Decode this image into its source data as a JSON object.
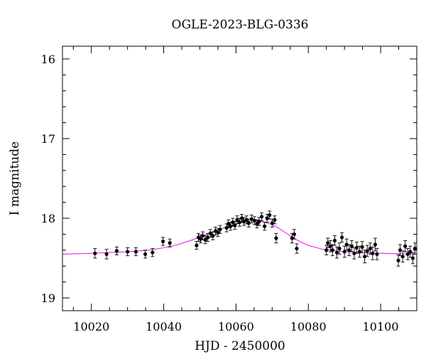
{
  "chart_data": {
    "type": "scatter",
    "title": "OGLE-2023-BLG-0336",
    "xlabel": "HJD - 2450000",
    "ylabel": "I magnitude",
    "xlim": [
      10012,
      10110
    ],
    "ylim": [
      19.16,
      15.84
    ],
    "y_inverted": true,
    "grid": false,
    "x_ticks": [
      10020,
      10040,
      10060,
      10080,
      10100
    ],
    "y_ticks": [
      16,
      17,
      18,
      19
    ],
    "x_tick_labels": [
      "10020",
      "10040",
      "10060",
      "10080",
      "10100"
    ],
    "y_tick_labels": [
      "16",
      "17",
      "18",
      "19"
    ],
    "colors": {
      "data": "#000000",
      "model": "#ee22ee"
    },
    "model": {
      "name": "",
      "x": [
        10012,
        10020,
        10030,
        10036,
        10040,
        10044,
        10048,
        10052,
        10056,
        10060,
        10063,
        10066,
        10068,
        10070,
        10072,
        10074,
        10076,
        10078,
        10080,
        10084,
        10088,
        10094,
        10100,
        10110
      ],
      "y": [
        18.45,
        18.44,
        18.42,
        18.4,
        18.37,
        18.33,
        18.27,
        18.2,
        18.13,
        18.07,
        18.04,
        18.03,
        18.05,
        18.08,
        18.13,
        18.19,
        18.25,
        18.3,
        18.34,
        18.39,
        18.41,
        18.43,
        18.44,
        18.45
      ]
    },
    "series": [
      {
        "x": [
          10021.0,
          10024.2,
          10027.0,
          10030.0,
          10032.3,
          10034.9,
          10036.9,
          10039.8,
          10041.7,
          10049.1,
          10049.6,
          10050.2,
          10050.8,
          10051.5,
          10052.2,
          10052.9,
          10053.6,
          10054.3,
          10055.0,
          10055.6,
          10057.4,
          10057.9,
          10058.5,
          10059.1,
          10059.7,
          10060.3,
          10061.0,
          10061.6,
          10062.2,
          10062.9,
          10063.5,
          10064.3,
          10065.1,
          10065.8,
          10066.4,
          10067.1,
          10067.9,
          10068.6,
          10069.3,
          10070.0,
          10070.7,
          10071.1,
          10075.5,
          10076.1,
          10076.8,
          10085.0,
          10085.4,
          10086.1,
          10086.7,
          10087.3,
          10087.9,
          10088.6,
          10089.3,
          10090.0,
          10090.6,
          10091.3,
          10092.0,
          10092.7,
          10093.4,
          10094.2,
          10094.9,
          10095.6,
          10096.3,
          10097.1,
          10097.8,
          10098.5,
          10099.0,
          10104.9,
          10105.4,
          10106.1,
          10106.8,
          10107.5,
          10108.2,
          10108.9,
          10109.5
        ],
        "y": [
          18.44,
          18.45,
          18.41,
          18.42,
          18.42,
          18.45,
          18.43,
          18.29,
          18.31,
          18.34,
          18.24,
          18.26,
          18.22,
          18.27,
          18.24,
          18.19,
          18.22,
          18.16,
          18.18,
          18.14,
          18.12,
          18.07,
          18.1,
          18.05,
          18.09,
          18.02,
          18.05,
          18.0,
          18.04,
          18.02,
          18.06,
          18.01,
          18.03,
          18.07,
          18.04,
          17.98,
          18.1,
          18.0,
          17.96,
          18.06,
          18.02,
          18.25,
          18.25,
          18.2,
          18.38,
          18.4,
          18.31,
          18.35,
          18.4,
          18.28,
          18.43,
          18.38,
          18.24,
          18.42,
          18.33,
          18.4,
          18.35,
          18.44,
          18.37,
          18.42,
          18.36,
          18.48,
          18.41,
          18.38,
          18.44,
          18.33,
          18.45,
          18.53,
          18.4,
          18.48,
          18.35,
          18.45,
          18.42,
          18.5,
          18.38
        ],
        "yerr": [
          0.06,
          0.06,
          0.05,
          0.05,
          0.05,
          0.05,
          0.05,
          0.05,
          0.05,
          0.05,
          0.05,
          0.05,
          0.05,
          0.05,
          0.05,
          0.05,
          0.05,
          0.05,
          0.05,
          0.05,
          0.05,
          0.05,
          0.05,
          0.05,
          0.05,
          0.05,
          0.05,
          0.05,
          0.05,
          0.05,
          0.05,
          0.05,
          0.05,
          0.05,
          0.05,
          0.05,
          0.05,
          0.05,
          0.05,
          0.05,
          0.05,
          0.06,
          0.06,
          0.06,
          0.06,
          0.06,
          0.06,
          0.07,
          0.07,
          0.06,
          0.07,
          0.07,
          0.06,
          0.07,
          0.07,
          0.07,
          0.07,
          0.07,
          0.07,
          0.07,
          0.07,
          0.08,
          0.07,
          0.07,
          0.08,
          0.08,
          0.07,
          0.07,
          0.07,
          0.07,
          0.07,
          0.07,
          0.07,
          0.07,
          0.07
        ]
      }
    ]
  }
}
